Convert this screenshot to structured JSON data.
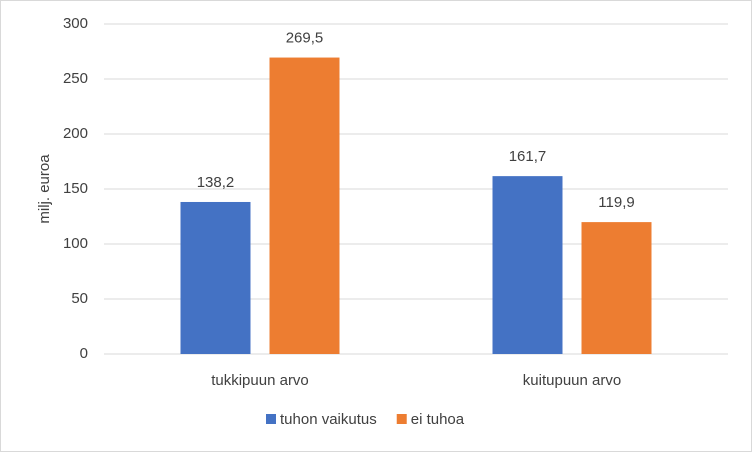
{
  "chart_data": {
    "type": "bar",
    "y_label": "milj. euroa",
    "categories": [
      "tukkipuun arvo",
      "kuitupuun arvo"
    ],
    "series": [
      {
        "name": "tuhon vaikutus",
        "color": "#4472c4",
        "values": [
          138.2,
          161.7
        ],
        "value_labels": [
          "138,2",
          "161,7"
        ]
      },
      {
        "name": "ei tuhoa",
        "color": "#ed7d31",
        "values": [
          269.5,
          119.9
        ],
        "value_labels": [
          "269,5",
          "119,9"
        ]
      }
    ],
    "ylim": [
      0,
      300
    ],
    "yticks": [
      0,
      50,
      100,
      150,
      200,
      250,
      300
    ],
    "grid": true,
    "legend": "bottom"
  }
}
